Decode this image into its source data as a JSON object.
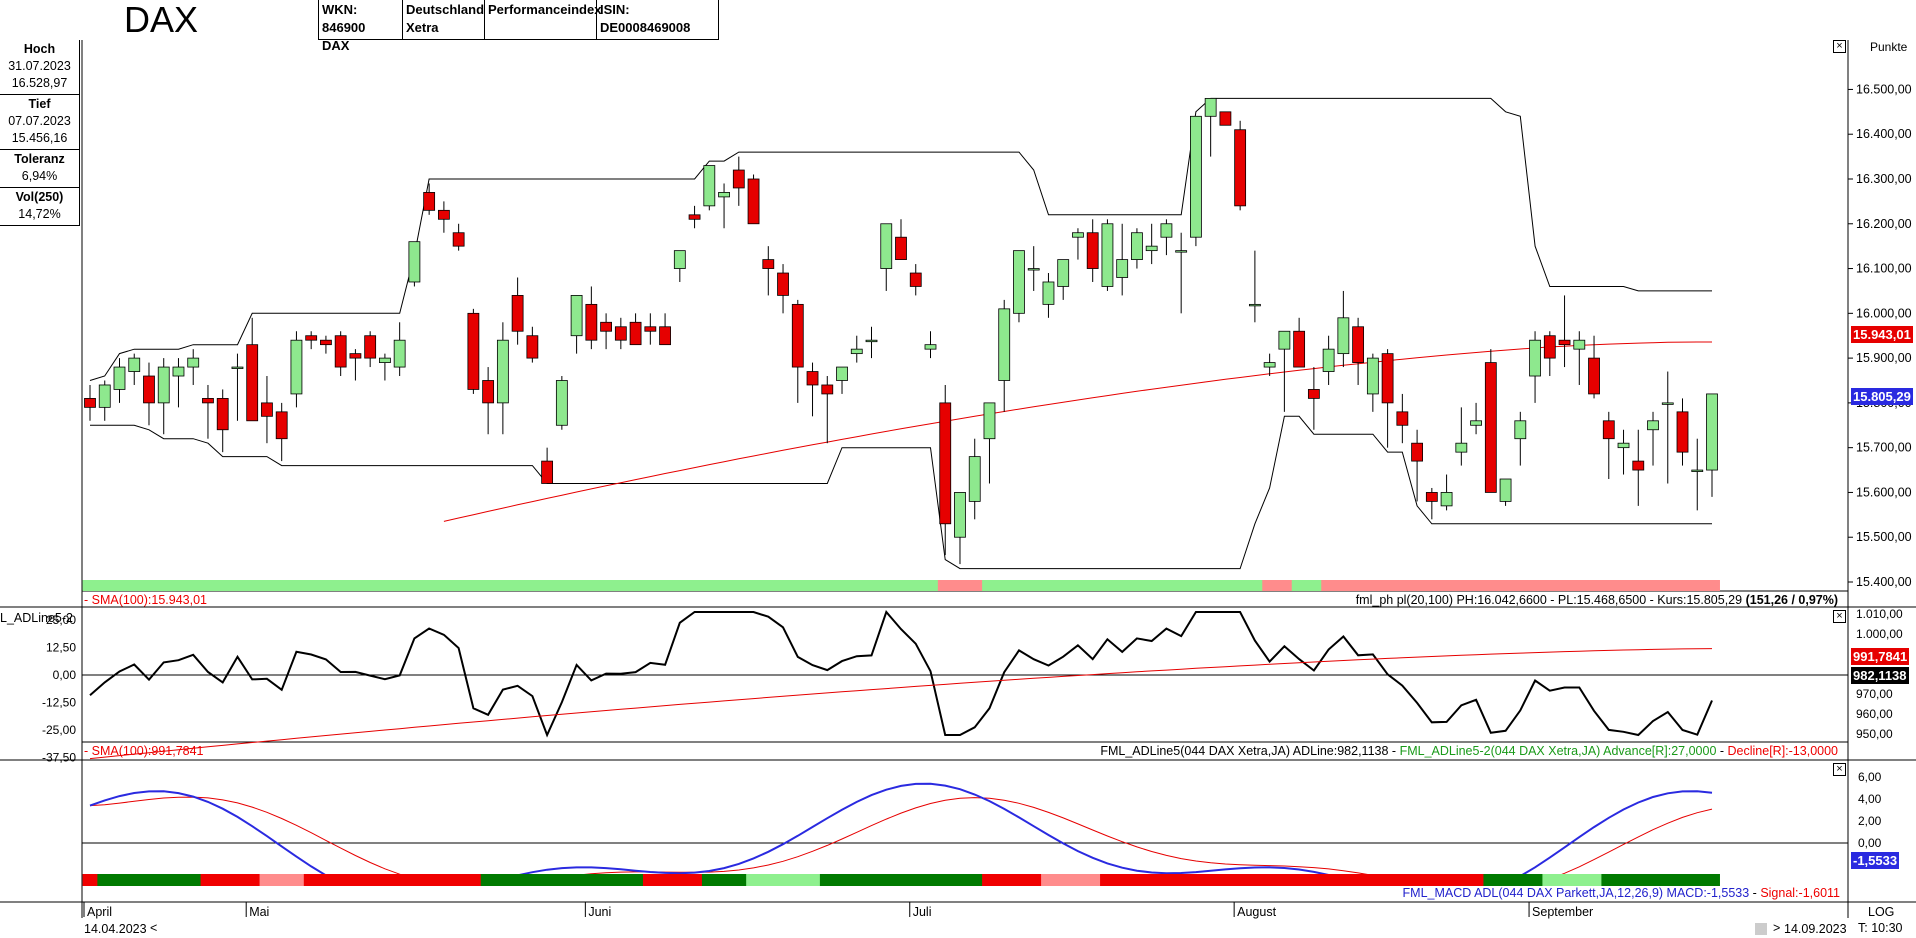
{
  "header": {
    "title": "DAX",
    "wkn_label": "WKN: 846900",
    "wkn_sub": "DAX",
    "exchange": "Deutschland",
    "exchange_sub": "Xetra",
    "index_type": "Performanceindex",
    "isin": "ISIN: DE0008469008"
  },
  "info": {
    "high_label": "Hoch",
    "high_date": "31.07.2023",
    "high_value": "16.528,97",
    "low_label": "Tief",
    "low_date": "07.07.2023",
    "low_value": "15.456,16",
    "tol_label": "Toleranz",
    "tol_value": "6,94%",
    "vol_label": "Vol(250)",
    "vol_value": "14,72%"
  },
  "main_panel": {
    "unit": "Punkte",
    "sma_label": "- SMA(100):15.943,01",
    "status_line": "fml_ph pl(20,100) PH:16.042,6600 - PL:15.468,6500 - Kurs:15.805,29",
    "status_bold": "(151,26 / 0,97%)",
    "sma_tag": "15.943,01",
    "price_tag": "15.805,29",
    "y_ticks": [
      "16.500,00",
      "16.400,00",
      "16.300,00",
      "16.200,00",
      "16.100,00",
      "16.000,00",
      "15.900,00",
      "15.800,00",
      "15.700,00",
      "15.600,00",
      "15.500,00",
      "15.400,00"
    ]
  },
  "adline_panel": {
    "name": "L_ADLine5-2",
    "left_ticks": [
      "25,00",
      "12,50",
      "0,00",
      "-12,50",
      "-25,00",
      "-37,50"
    ],
    "right_ticks": [
      "1.010,00",
      "1.000,00",
      "970,00",
      "960,00",
      "950,00"
    ],
    "sma_tag": "991,7841",
    "value_tag": "982,1138",
    "sma_label": "- SMA(100):991,7841",
    "status_black": "FML_ADLine5(044 DAX Xetra,JA) ADLine:982,1138 - ",
    "status_green": "FML_ADLine5-2(044 DAX Xetra,JA) Advance[R]:27,0000",
    "status_sep": " - ",
    "status_red": "Decline[R]:-13,0000"
  },
  "macd_panel": {
    "y_ticks": [
      "6,00",
      "4,00",
      "2,00",
      "0,00"
    ],
    "value_tag": "-1,5533",
    "status_blue": "FML_MACD ADL(044 DAX Parkett,JA,12,26,9) MACD:-1,5533",
    "status_sep": " - ",
    "status_red": "Signal:-1,6011"
  },
  "x_axis": {
    "months": [
      "April",
      "Mai",
      "Juni",
      "Juli",
      "August",
      "September"
    ],
    "start_date": "14.04.2023",
    "end_date": "14.09.2023",
    "log_label": "LOG",
    "time_label": "T: 10:30",
    "nav_left": "<",
    "nav_right": ">"
  },
  "colors": {
    "up": "#8ee88e",
    "down": "#e60000",
    "sma": "#e60000",
    "channel": "#000000",
    "macd": "#2a2ae0",
    "strip_light": "#8ef08e",
    "strip_dark": "#007a00",
    "strip_red": "#f00000",
    "strip_pink": "#ff8c8c"
  },
  "chart_data": {
    "type": "candlestick",
    "title": "DAX",
    "period": [
      "2023-04-14",
      "2023-09-14"
    ],
    "ylim": [
      15370,
      16560
    ],
    "candles_ohlc": [
      [
        15810,
        15840,
        15760,
        15790
      ],
      [
        15790,
        15850,
        15760,
        15840
      ],
      [
        15830,
        15900,
        15800,
        15880
      ],
      [
        15870,
        15910,
        15840,
        15900
      ],
      [
        15860,
        15890,
        15750,
        15800
      ],
      [
        15800,
        15900,
        15730,
        15880
      ],
      [
        15860,
        15900,
        15790,
        15880
      ],
      [
        15880,
        15920,
        15840,
        15900
      ],
      [
        15810,
        15840,
        15720,
        15800
      ],
      [
        15810,
        15830,
        15690,
        15740
      ],
      [
        15880,
        15910,
        15760,
        15880
      ],
      [
        15930,
        15990,
        15800,
        15760
      ],
      [
        15800,
        15860,
        15710,
        15770
      ],
      [
        15780,
        15800,
        15670,
        15720
      ],
      [
        15820,
        15960,
        15790,
        15940
      ],
      [
        15950,
        15960,
        15920,
        15940
      ],
      [
        15940,
        15950,
        15910,
        15930
      ],
      [
        15950,
        15960,
        15860,
        15880
      ],
      [
        15910,
        15920,
        15850,
        15900
      ],
      [
        15950,
        15960,
        15880,
        15900
      ],
      [
        15890,
        15910,
        15850,
        15900
      ],
      [
        15880,
        15980,
        15860,
        15940
      ],
      [
        16070,
        16120,
        16060,
        16160
      ],
      [
        16270,
        16290,
        16220,
        16230
      ],
      [
        16230,
        16250,
        16180,
        16210
      ],
      [
        16180,
        16200,
        16140,
        16150
      ],
      [
        16000,
        16010,
        15820,
        15830
      ],
      [
        15850,
        15880,
        15730,
        15800
      ],
      [
        15800,
        15980,
        15730,
        15940
      ],
      [
        16040,
        16080,
        15930,
        15960
      ],
      [
        15950,
        15970,
        15890,
        15900
      ],
      [
        15670,
        15700,
        15630,
        15620
      ],
      [
        15750,
        15860,
        15740,
        15850
      ],
      [
        15950,
        16030,
        15910,
        16040
      ],
      [
        16020,
        16060,
        15920,
        15940
      ],
      [
        15980,
        16000,
        15920,
        15960
      ],
      [
        15970,
        15990,
        15920,
        15940
      ],
      [
        15980,
        16000,
        15930,
        15930
      ],
      [
        15970,
        16000,
        15930,
        15960
      ],
      [
        15970,
        16000,
        15930,
        15930
      ],
      [
        16100,
        16110,
        16070,
        16140
      ],
      [
        16220,
        16240,
        16190,
        16210
      ],
      [
        16240,
        16330,
        16230,
        16330
      ],
      [
        16260,
        16290,
        16190,
        16270
      ],
      [
        16320,
        16350,
        16240,
        16280
      ],
      [
        16300,
        16310,
        16200,
        16200
      ],
      [
        16120,
        16150,
        16040,
        16100
      ],
      [
        16090,
        16110,
        16000,
        16040
      ],
      [
        16020,
        16030,
        15800,
        15880
      ],
      [
        15870,
        15890,
        15770,
        15840
      ],
      [
        15840,
        15860,
        15710,
        15820
      ],
      [
        15850,
        15880,
        15820,
        15880
      ],
      [
        15910,
        15950,
        15890,
        15920
      ],
      [
        15940,
        15970,
        15900,
        15940
      ],
      [
        16100,
        16170,
        16050,
        16200
      ],
      [
        16170,
        16210,
        16120,
        16120
      ],
      [
        16090,
        16110,
        16040,
        16060
      ],
      [
        15920,
        15960,
        15900,
        15930
      ],
      [
        15800,
        15840,
        15460,
        15530
      ],
      [
        15500,
        15530,
        15440,
        15600
      ],
      [
        15580,
        15720,
        15540,
        15680
      ],
      [
        15720,
        15800,
        15620,
        15800
      ],
      [
        15850,
        16030,
        15780,
        16010
      ],
      [
        16000,
        16100,
        15980,
        16140
      ],
      [
        16100,
        16150,
        16050,
        16100
      ],
      [
        16020,
        16090,
        15990,
        16070
      ],
      [
        16060,
        16120,
        16030,
        16120
      ],
      [
        16170,
        16190,
        16120,
        16180
      ],
      [
        16180,
        16210,
        16070,
        16100
      ],
      [
        16060,
        16210,
        16050,
        16200
      ],
      [
        16080,
        16200,
        16040,
        16120
      ],
      [
        16120,
        16190,
        16100,
        16180
      ],
      [
        16140,
        16200,
        16110,
        16150
      ],
      [
        16170,
        16210,
        16130,
        16200
      ],
      [
        16140,
        16180,
        16000,
        16140
      ],
      [
        16170,
        16440,
        16150,
        16440
      ],
      [
        16440,
        16470,
        16350,
        16480
      ],
      [
        16450,
        16440,
        16420,
        16420
      ],
      [
        16410,
        16430,
        16230,
        16240
      ],
      [
        16020,
        16140,
        15980,
        16020
      ],
      [
        15880,
        15910,
        15860,
        15890
      ],
      [
        15920,
        15950,
        15780,
        15960
      ],
      [
        15960,
        15990,
        15890,
        15880
      ],
      [
        15830,
        15880,
        15740,
        15810
      ],
      [
        15870,
        15950,
        15840,
        15920
      ],
      [
        15910,
        16050,
        15880,
        15990
      ],
      [
        15970,
        15990,
        15840,
        15890
      ],
      [
        15820,
        15910,
        15780,
        15900
      ],
      [
        15910,
        15920,
        15700,
        15800
      ],
      [
        15780,
        15820,
        15710,
        15750
      ],
      [
        15710,
        15740,
        15580,
        15670
      ],
      [
        15600,
        15610,
        15540,
        15580
      ],
      [
        15570,
        15640,
        15560,
        15600
      ],
      [
        15690,
        15790,
        15660,
        15710
      ],
      [
        15750,
        15800,
        15730,
        15760
      ],
      [
        15890,
        15920,
        15600,
        15600
      ],
      [
        15580,
        15620,
        15570,
        15630
      ],
      [
        15720,
        15780,
        15660,
        15760
      ],
      [
        15860,
        15960,
        15800,
        15940
      ],
      [
        15950,
        15960,
        15860,
        15900
      ],
      [
        15940,
        16040,
        15880,
        15930
      ],
      [
        15920,
        15960,
        15840,
        15940
      ],
      [
        15900,
        15950,
        15810,
        15820
      ],
      [
        15760,
        15780,
        15630,
        15720
      ],
      [
        15700,
        15740,
        15640,
        15710
      ],
      [
        15670,
        15740,
        15570,
        15650
      ],
      [
        15740,
        15780,
        15660,
        15760
      ],
      [
        15800,
        15870,
        15620,
        15800
      ],
      [
        15780,
        15810,
        15660,
        15690
      ],
      [
        15650,
        15720,
        15560,
        15650
      ],
      [
        15650,
        15820,
        15590,
        15820
      ]
    ],
    "series": [
      {
        "name": "SMA(100)",
        "last": 15943.01
      },
      {
        "name": "PH",
        "last": 16042.66
      },
      {
        "name": "PL",
        "last": 15468.65
      }
    ],
    "last_close": 15805.29
  }
}
